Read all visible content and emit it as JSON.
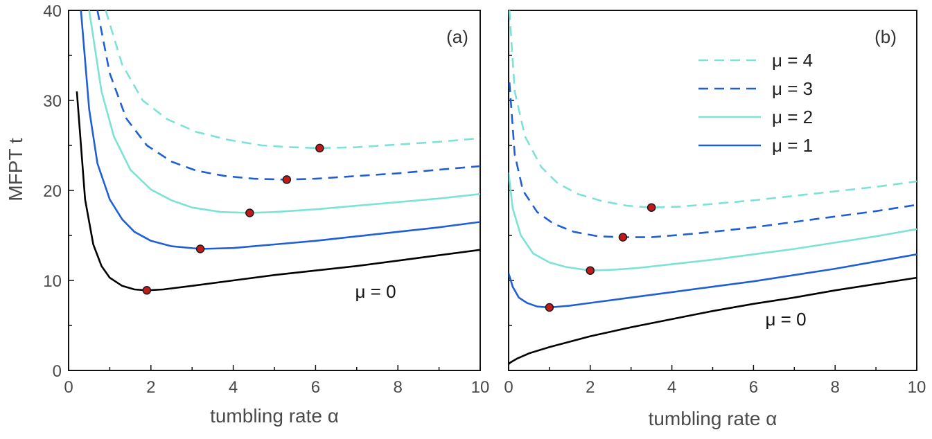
{
  "chart_data": [
    {
      "type": "line",
      "panel_label": "(a)",
      "xlabel": "tumbling rate α",
      "ylabel": "MFPT t",
      "xlim": [
        0,
        10
      ],
      "ylim": [
        0,
        40
      ],
      "xticks": [
        "0",
        "2",
        "4",
        "6",
        "8",
        "10"
      ],
      "yticks": [
        "0",
        "10",
        "20",
        "30",
        "40"
      ],
      "annotation": "μ = 0",
      "series": [
        {
          "label": "μ = 0",
          "color": "#000000",
          "dash": "solid",
          "x": [
            0.2,
            0.4,
            0.6,
            0.8,
            1.0,
            1.3,
            1.6,
            1.9,
            2.3,
            3,
            4,
            5,
            6,
            7,
            8,
            9,
            10
          ],
          "y": [
            31,
            19,
            14,
            11.6,
            10.3,
            9.4,
            9.0,
            8.9,
            9.0,
            9.4,
            10.0,
            10.6,
            11.1,
            11.6,
            12.2,
            12.8,
            13.4
          ],
          "min": [
            1.9,
            8.9
          ]
        },
        {
          "label": "μ = 1",
          "color": "#1f5fd6",
          "dash": "solid",
          "x": [
            0.3,
            0.5,
            0.7,
            1.0,
            1.3,
            1.6,
            2.0,
            2.5,
            3.2,
            4,
            5,
            6,
            7,
            8,
            9,
            10
          ],
          "y": [
            40,
            29,
            23,
            19,
            16.8,
            15.4,
            14.4,
            13.8,
            13.5,
            13.6,
            14.0,
            14.4,
            14.9,
            15.4,
            15.9,
            16.5
          ],
          "min": [
            3.2,
            13.5
          ]
        },
        {
          "label": "μ = 2",
          "color": "#7de2d6",
          "dash": "solid",
          "x": [
            0.5,
            0.8,
            1.1,
            1.5,
            2.0,
            2.5,
            3.0,
            3.7,
            4.4,
            5,
            6,
            7,
            8,
            9,
            10
          ],
          "y": [
            40,
            31,
            26,
            22.3,
            20.1,
            18.9,
            18.1,
            17.6,
            17.5,
            17.6,
            17.9,
            18.3,
            18.7,
            19.1,
            19.6
          ],
          "min": [
            4.4,
            17.5
          ]
        },
        {
          "label": "μ = 3",
          "color": "#1f5fd6",
          "dash": "dashed",
          "x": [
            0.7,
            1.0,
            1.4,
            1.9,
            2.5,
            3.1,
            3.8,
            4.5,
            5.3,
            6,
            7,
            8,
            9,
            10
          ],
          "y": [
            40,
            33,
            28,
            25,
            23.2,
            22.2,
            21.6,
            21.3,
            21.2,
            21.3,
            21.6,
            21.9,
            22.3,
            22.7
          ],
          "min": [
            5.3,
            21.2
          ]
        },
        {
          "label": "μ = 4",
          "color": "#7de2d6",
          "dash": "dashed",
          "x": [
            0.9,
            1.3,
            1.8,
            2.4,
            3.1,
            3.9,
            4.7,
            5.4,
            6.1,
            7,
            8,
            9,
            10
          ],
          "y": [
            40,
            34,
            30,
            27.9,
            26.5,
            25.6,
            25.0,
            24.8,
            24.7,
            24.8,
            25.1,
            25.4,
            25.8
          ],
          "min": [
            6.1,
            24.7
          ]
        }
      ]
    },
    {
      "type": "line",
      "panel_label": "(b)",
      "xlabel": "tumbling rate α",
      "ylabel": "",
      "xlim": [
        0,
        10
      ],
      "ylim": [
        0,
        40
      ],
      "xticks": [
        "0",
        "2",
        "4",
        "6",
        "8",
        "10"
      ],
      "yticks": [],
      "annotation": "μ = 0",
      "legend": [
        "μ = 4",
        "μ = 3",
        "μ = 2",
        "μ = 1"
      ],
      "series": [
        {
          "label": "μ = 0",
          "color": "#000000",
          "dash": "solid",
          "x": [
            0,
            0.05,
            0.2,
            0.5,
            1,
            2,
            3,
            4,
            5,
            6,
            7,
            8,
            9,
            10
          ],
          "y": [
            0.7,
            0.9,
            1.3,
            1.9,
            2.6,
            3.8,
            4.8,
            5.7,
            6.6,
            7.4,
            8.1,
            8.9,
            9.6,
            10.3
          ],
          "min": null
        },
        {
          "label": "μ = 1",
          "color": "#1f5fd6",
          "dash": "solid",
          "x": [
            0,
            0.1,
            0.25,
            0.45,
            0.7,
            1.0,
            1.5,
            2,
            3,
            4,
            5,
            6,
            7,
            8,
            9,
            10
          ],
          "y": [
            10.8,
            9.3,
            8.1,
            7.5,
            7.1,
            7.0,
            7.2,
            7.5,
            8.1,
            8.7,
            9.3,
            9.9,
            10.6,
            11.3,
            12.1,
            12.9
          ],
          "min": [
            1.0,
            7.0
          ]
        },
        {
          "label": "μ = 2",
          "color": "#7de2d6",
          "dash": "solid",
          "x": [
            0,
            0.1,
            0.3,
            0.6,
            1.0,
            1.4,
            2.0,
            2.6,
            3.2,
            4,
            5,
            6,
            7,
            8,
            9,
            10
          ],
          "y": [
            22,
            18,
            15,
            13,
            12,
            11.5,
            11.1,
            11.2,
            11.4,
            11.8,
            12.3,
            12.9,
            13.5,
            14.2,
            14.9,
            15.7
          ],
          "min": [
            2.0,
            11.1
          ]
        },
        {
          "label": "μ = 3",
          "color": "#1f5fd6",
          "dash": "dashed",
          "x": [
            0.02,
            0.15,
            0.35,
            0.7,
            1.1,
            1.6,
            2.2,
            2.8,
            3.5,
            4.3,
            5,
            6,
            7,
            8,
            9,
            10
          ],
          "y": [
            32,
            24,
            20,
            17.6,
            16.3,
            15.4,
            14.9,
            14.8,
            14.8,
            15.1,
            15.4,
            15.9,
            16.5,
            17.1,
            17.7,
            18.4
          ],
          "min": [
            2.8,
            14.8
          ]
        },
        {
          "label": "μ = 4",
          "color": "#7de2d6",
          "dash": "dashed",
          "x": [
            0.02,
            0.15,
            0.4,
            0.8,
            1.2,
            1.7,
            2.3,
            2.9,
            3.5,
            4.2,
            5,
            6,
            7,
            8,
            9,
            10
          ],
          "y": [
            40,
            31,
            26,
            22.6,
            20.8,
            19.6,
            18.8,
            18.3,
            18.1,
            18.2,
            18.5,
            18.9,
            19.4,
            19.9,
            20.4,
            21.0
          ],
          "min": [
            3.5,
            18.1
          ]
        }
      ]
    }
  ]
}
